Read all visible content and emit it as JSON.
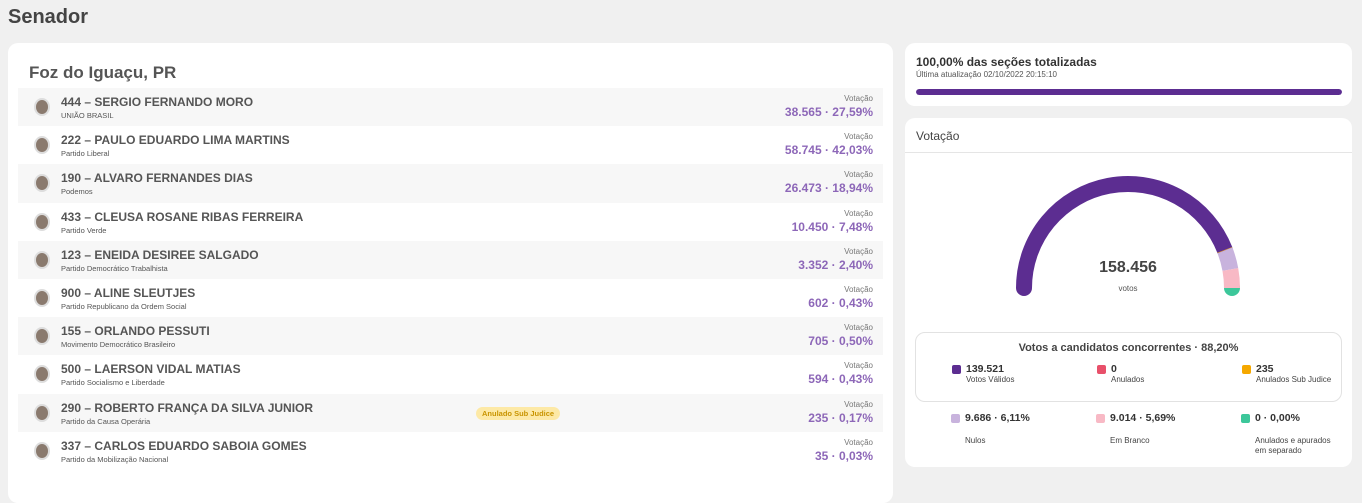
{
  "header": {
    "title": "Senador"
  },
  "results": {
    "location": "Foz do Iguaçu, PR",
    "votes_heading": "Votação",
    "candidates": [
      {
        "name": "444 – SERGIO FERNANDO MORO",
        "party": "UNIÃO BRASIL",
        "votes": "38.565 · 27,59%"
      },
      {
        "name": "222 – PAULO EDUARDO LIMA MARTINS",
        "party": "Partido Liberal",
        "votes": "58.745 · 42,03%"
      },
      {
        "name": "190 – ALVARO FERNANDES DIAS",
        "party": "Podemos",
        "votes": "26.473 · 18,94%"
      },
      {
        "name": "433 – CLEUSA ROSANE RIBAS FERREIRA",
        "party": "Partido Verde",
        "votes": "10.450 · 7,48%"
      },
      {
        "name": "123 – ENEIDA DESIREE SALGADO",
        "party": "Partido Democrático Trabalhista",
        "votes": "3.352 · 2,40%"
      },
      {
        "name": "900 – ALINE SLEUTJES",
        "party": "Partido Republicano da Ordem Social",
        "votes": "602 · 0,43%"
      },
      {
        "name": "155 – ORLANDO PESSUTI",
        "party": "Movimento Democrático Brasileiro",
        "votes": "705 · 0,50%"
      },
      {
        "name": "500 – LAERSON VIDAL MATIAS",
        "party": "Partido Socialismo e Liberdade",
        "votes": "594 · 0,43%"
      },
      {
        "name": "290 – ROBERTO FRANÇA DA SILVA JUNIOR",
        "party": "Partido da Causa Operária",
        "votes": "235 · 0,17%",
        "badge": "Anulado Sub Judice"
      },
      {
        "name": "337 – CARLOS EDUARDO SABOIA GOMES",
        "party": "Partido da Mobilização Nacional",
        "votes": "35 · 0,03%"
      }
    ]
  },
  "status": {
    "title": "100,00% das seções totalizadas",
    "updated": "Última atualização 02/10/2022 20:15:10",
    "percent": 100
  },
  "voting": {
    "title": "Votação",
    "gauge": {
      "total": "158.456",
      "unit": "votos"
    },
    "summary": {
      "title": "Votos a candidatos concorrentes · 88,20%",
      "items": [
        {
          "value": {
            "value": 139521,
            "label": "139.521"
          },
          "label": "Votos Válidos",
          "color": "#5c2d91"
        },
        {
          "value": {
            "value": 0,
            "label": "0"
          },
          "label": "Anulados",
          "color": "#e8506a"
        },
        {
          "value": {
            "value": 235,
            "label": "235"
          },
          "label": "Anulados Sub Judice",
          "color": "#f5a800"
        }
      ]
    },
    "others": [
      {
        "value": {
          "value": 9686,
          "label": "9.686 · 6,11%"
        },
        "label": "Nulos",
        "color": "#c8b3dd"
      },
      {
        "value": {
          "value": 9014,
          "label": "9.014 · 5,69%"
        },
        "label": "Em Branco",
        "color": "#f8b9c5"
      },
      {
        "value": {
          "value": 0,
          "label": "0 · 0,00%"
        },
        "label": "Anulados e apurados em separado",
        "color": "#3cc79a"
      }
    ]
  }
}
